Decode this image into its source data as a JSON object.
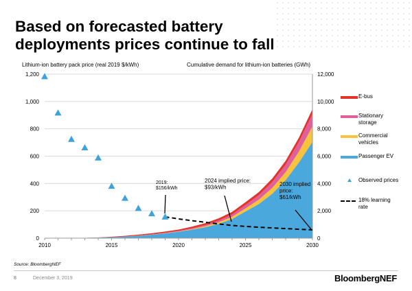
{
  "title": "Based on forecasted battery deployments prices continue to fall",
  "footer": {
    "source": "Source: BloombergNEF",
    "page": "8",
    "date": "December 3, 2019",
    "brand": "BloombergNEF"
  },
  "chart_data": {
    "type": "area",
    "left_axis_label": "Lithium-ion battery pack price (real 2019 $/kWh)",
    "right_axis_label": "Cumulative demand for lithium-ion batteries (GWh)",
    "x": [
      2010,
      2011,
      2012,
      2013,
      2014,
      2015,
      2016,
      2017,
      2018,
      2019,
      2020,
      2021,
      2022,
      2023,
      2024,
      2025,
      2026,
      2027,
      2028,
      2029,
      2030
    ],
    "x_ticks": [
      "2010",
      "2015",
      "2020",
      "2025",
      "2030"
    ],
    "left_ylim": [
      0,
      1200
    ],
    "left_ticks": [
      "0",
      "200",
      "400",
      "600",
      "800",
      "1,000",
      "1,200"
    ],
    "right_ylim": [
      0,
      12000
    ],
    "right_ticks": [
      "0",
      "2,000",
      "4,000",
      "6,000",
      "8,000",
      "10,000",
      "12,000"
    ],
    "grid": true,
    "legend_placement": "right",
    "stacked_series": [
      {
        "name": "Passenger EV",
        "color": "#4aa8dc",
        "values": [
          0,
          5,
          10,
          20,
          40,
          70,
          110,
          170,
          250,
          350,
          470,
          620,
          800,
          1050,
          1400,
          1950,
          2500,
          3250,
          4250,
          5550,
          7050
        ]
      },
      {
        "name": "Commercial vehicles",
        "color": "#f7c23c",
        "values": [
          0,
          0,
          0,
          0,
          0,
          0,
          2,
          5,
          8,
          12,
          20,
          40,
          70,
          110,
          160,
          230,
          320,
          430,
          580,
          800,
          1130
        ]
      },
      {
        "name": "Stationary storage",
        "color": "#e0609b",
        "values": [
          0,
          0,
          0,
          0,
          2,
          5,
          10,
          15,
          20,
          30,
          40,
          60,
          90,
          130,
          180,
          250,
          330,
          430,
          550,
          710,
          910
        ]
      },
      {
        "name": "E-bus",
        "color": "#e2342a",
        "values": [
          0,
          0,
          2,
          5,
          10,
          30,
          50,
          70,
          80,
          90,
          100,
          120,
          140,
          160,
          180,
          200,
          220,
          250,
          280,
          310,
          350
        ]
      }
    ],
    "observed_prices": {
      "name": "Observed prices",
      "color": "#3fa3db",
      "x": [
        2010,
        2011,
        2012,
        2013,
        2014,
        2015,
        2016,
        2017,
        2018,
        2019
      ],
      "values": [
        1183,
        917,
        724,
        663,
        588,
        381,
        293,
        219,
        180,
        156
      ]
    },
    "learning_rate": {
      "name": "18% learning rate",
      "color": "#000000",
      "x": [
        2019,
        2020,
        2021,
        2022,
        2023,
        2024,
        2025,
        2026,
        2027,
        2028,
        2029,
        2030
      ],
      "values": [
        156,
        141,
        128,
        116,
        104,
        93,
        86,
        80,
        75,
        70,
        65,
        61
      ]
    },
    "annotations": [
      {
        "text": "2019: $156/kWh",
        "x": 2019,
        "y": 156
      },
      {
        "text": "2024 implied price: $93/kWh",
        "x": 2024,
        "y": 93
      },
      {
        "text": "2030 implied price: $61/kWh",
        "x": 2030,
        "y": 61
      }
    ]
  }
}
